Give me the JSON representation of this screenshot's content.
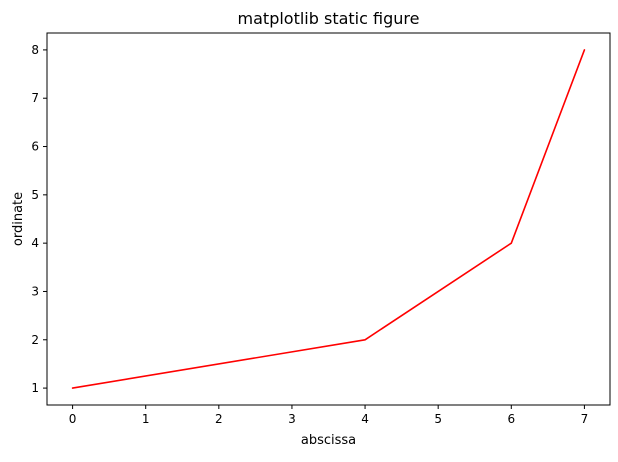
{
  "chart_data": {
    "type": "line",
    "title": "matplotlib static figure",
    "xlabel": "abscissa",
    "ylabel": "ordinate",
    "x": [
      0,
      4,
      6,
      7
    ],
    "series": [
      {
        "values": [
          1,
          2,
          4,
          8
        ],
        "color": "#ff0000"
      }
    ],
    "xticks": [
      0,
      1,
      2,
      3,
      4,
      5,
      6,
      7
    ],
    "yticks": [
      1,
      2,
      3,
      4,
      5,
      6,
      7,
      8
    ],
    "xlim": [
      -0.35,
      7.35
    ],
    "ylim": [
      0.65,
      8.35
    ],
    "grid": false,
    "legend": "none"
  }
}
